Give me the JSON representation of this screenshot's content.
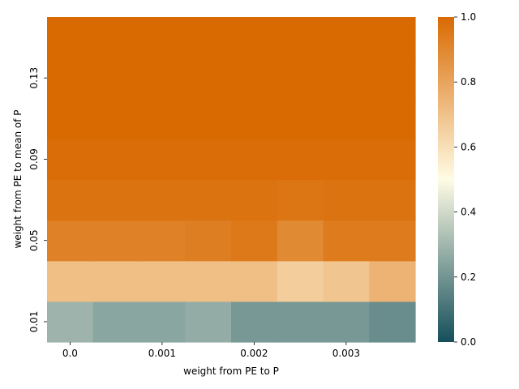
{
  "chart_data": {
    "type": "heatmap",
    "xlabel": "weight from PE to P",
    "ylabel": "weight from PE to mean of P",
    "x_ticks": [
      "0.0",
      "0.001",
      "0.002",
      "0.003"
    ],
    "y_ticks": [
      "0.01",
      "0.05",
      "0.09",
      "0.13"
    ],
    "x": [
      0.0,
      0.0005,
      0.001,
      0.0015,
      0.002,
      0.0025,
      0.003,
      0.0035
    ],
    "y": [
      0.01,
      0.03,
      0.05,
      0.07,
      0.09,
      0.11,
      0.13,
      0.15
    ],
    "values": [
      [
        0.29,
        0.25,
        0.25,
        0.27,
        0.21,
        0.21,
        0.21,
        0.18
      ],
      [
        0.71,
        0.71,
        0.71,
        0.71,
        0.71,
        0.66,
        0.69,
        0.75
      ],
      [
        0.92,
        0.92,
        0.92,
        0.93,
        0.95,
        0.89,
        0.94,
        0.94
      ],
      [
        0.97,
        0.97,
        0.97,
        0.97,
        0.97,
        0.96,
        0.97,
        0.97
      ],
      [
        0.99,
        0.99,
        0.99,
        0.99,
        0.99,
        0.99,
        0.99,
        0.99
      ],
      [
        1.0,
        1.0,
        1.0,
        1.0,
        1.0,
        1.0,
        1.0,
        1.0
      ],
      [
        1.0,
        1.0,
        1.0,
        1.0,
        1.0,
        1.0,
        1.0,
        1.0
      ],
      [
        1.0,
        1.0,
        1.0,
        1.0,
        1.0,
        1.0,
        1.0,
        1.0
      ]
    ],
    "colorbar": {
      "range": [
        0.0,
        1.0
      ],
      "ticks": [
        "0.0",
        "0.2",
        "0.4",
        "0.6",
        "0.8",
        "1.0"
      ],
      "colormap": [
        "#154f5b",
        "#fffce5",
        "#d96a02"
      ]
    },
    "grid": false
  }
}
